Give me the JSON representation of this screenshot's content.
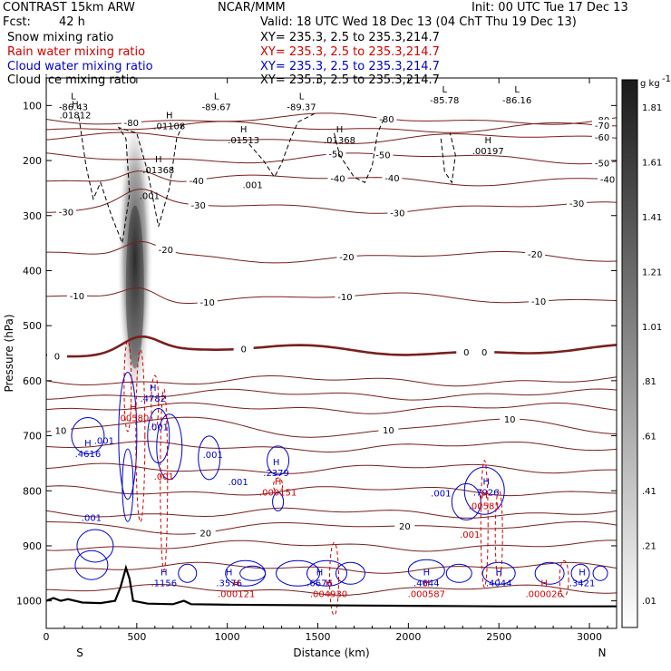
{
  "header": {
    "model": "CONTRAST 15km ARW",
    "center": "NCAR/MMM",
    "init": "Init: 00 UTC Tue 17 Dec 13",
    "fcst_label": "Fcst:",
    "fcst_value": "42 h",
    "valid": "Valid: 18 UTC Wed 18 Dec 13 (04 ChT Thu 19 Dec 13)",
    "fields": [
      {
        "name": "Snow mixing ratio",
        "xy": "XY= 235.3,   2.5 to 235.3,214.7",
        "color": "#000000"
      },
      {
        "name": "Rain water mixing ratio",
        "xy": "XY= 235.3,   2.5 to 235.3,214.7",
        "color": "#d00000"
      },
      {
        "name": "Cloud water mixing ratio",
        "xy": "XY= 235.3,   2.5 to 235.3,214.7",
        "color": "#0000cc"
      },
      {
        "name": "Cloud ice mixing ratio",
        "xy": "XY= 235.3,   2.5 to 235.3,214.7",
        "color": "#000000"
      }
    ]
  },
  "chart_data": {
    "type": "contour",
    "xlabel": "Distance (km)",
    "ylabel": "Pressure (hPa)",
    "xlim": [
      0,
      3150
    ],
    "ylim": [
      1050,
      50
    ],
    "xticks": [
      0,
      500,
      1000,
      1500,
      2000,
      2500,
      3000
    ],
    "yticks": [
      100,
      200,
      300,
      400,
      500,
      600,
      700,
      800,
      900,
      1000
    ],
    "x_end_labels": {
      "left": "S",
      "right": "N"
    },
    "colorbar": {
      "unit": "g kg",
      "unit_exp": "-1",
      "levels": [
        ".01",
        ".21",
        ".41",
        ".61",
        ".81",
        "1.01",
        "1.21",
        "1.41",
        "1.61",
        "1.81"
      ]
    },
    "temperature_contours": [
      {
        "level": -80,
        "base_p": 125,
        "labels": [
          {
            "x": 470,
            "text": "-80"
          },
          {
            "x": 1880,
            "text": "-80"
          },
          {
            "x": 3070,
            "text": "-80"
          }
        ]
      },
      {
        "level": -70,
        "base_p": 140,
        "labels": [
          {
            "x": 3070,
            "text": "-70"
          }
        ]
      },
      {
        "level": -60,
        "base_p": 160,
        "labels": [
          {
            "x": 3070,
            "text": "-60"
          }
        ]
      },
      {
        "level": -50,
        "base_p": 195,
        "labels": [
          {
            "x": 1600,
            "text": "-50"
          },
          {
            "x": 1860,
            "text": "-50"
          },
          {
            "x": 3070,
            "text": "-50"
          }
        ]
      },
      {
        "level": -40,
        "base_p": 235,
        "labels": [
          {
            "x": 830,
            "text": "-40"
          },
          {
            "x": 1610,
            "text": "-40"
          },
          {
            "x": 1910,
            "text": "-40"
          },
          {
            "x": 3100,
            "text": "-40"
          }
        ]
      },
      {
        "level": -30,
        "base_p": 285,
        "labels": [
          {
            "x": 110,
            "text": "-30"
          },
          {
            "x": 840,
            "text": "-30"
          },
          {
            "x": 1940,
            "text": "-30"
          },
          {
            "x": 2930,
            "text": "-30"
          }
        ]
      },
      {
        "level": -20,
        "base_p": 375,
        "labels": [
          {
            "x": 660,
            "text": "-20"
          },
          {
            "x": 1660,
            "text": "-20"
          },
          {
            "x": 2700,
            "text": "-20"
          }
        ]
      },
      {
        "level": -10,
        "base_p": 450,
        "labels": [
          {
            "x": 170,
            "text": "-10"
          },
          {
            "x": 890,
            "text": "-10"
          },
          {
            "x": 1650,
            "text": "-10"
          },
          {
            "x": 2720,
            "text": "-10"
          }
        ]
      },
      {
        "level": 0,
        "base_p": 545,
        "labels": [
          {
            "x": 60,
            "text": "0"
          },
          {
            "x": 1090,
            "text": "0"
          },
          {
            "x": 2320,
            "text": "0"
          },
          {
            "x": 2420,
            "text": "0"
          }
        ]
      },
      {
        "level": 10,
        "base_p": 685,
        "labels": [
          {
            "x": 80,
            "text": "10"
          },
          {
            "x": 1890,
            "text": "10"
          },
          {
            "x": 2560,
            "text": "10"
          }
        ]
      },
      {
        "level": 20,
        "base_p": 865,
        "labels": [
          {
            "x": 880,
            "text": "20"
          },
          {
            "x": 1980,
            "text": "20"
          }
        ]
      }
    ],
    "extrema": [
      {
        "kind": "L",
        "x": 150,
        "p": 100,
        "value": "-86.43",
        "color": "#000000"
      },
      {
        "kind": "H",
        "x": 160,
        "p": 115,
        "value": ".01812",
        "color": "#000000"
      },
      {
        "kind": "H",
        "x": 680,
        "p": 135,
        "value": ".01108",
        "color": "#000000"
      },
      {
        "kind": "L",
        "x": 940,
        "p": 100,
        "value": "-89.67",
        "color": "#000000"
      },
      {
        "kind": "L",
        "x": 1410,
        "p": 100,
        "value": "-89.37",
        "color": "#000000"
      },
      {
        "kind": "H",
        "x": 1090,
        "p": 160,
        "value": ".01513",
        "color": "#000000"
      },
      {
        "kind": "H",
        "x": 1620,
        "p": 160,
        "value": ".01368",
        "color": "#000000"
      },
      {
        "kind": "L",
        "x": 2200,
        "p": 88,
        "value": "-85.78",
        "color": "#000000"
      },
      {
        "kind": "L",
        "x": 2600,
        "p": 88,
        "value": "-86.16",
        "color": "#000000"
      },
      {
        "kind": "H",
        "x": 2440,
        "p": 180,
        "value": ".00197",
        "color": "#000000"
      },
      {
        "kind": "H",
        "x": 620,
        "p": 215,
        "value": ".01368",
        "color": "#000000"
      },
      {
        "kind": "H",
        "x": 590,
        "p": 630,
        "value": ".4782",
        "color": "#0000cc"
      },
      {
        "kind": "H",
        "x": 480,
        "p": 665,
        "value": ".00580",
        "color": "#d00000"
      },
      {
        "kind": "H",
        "x": 230,
        "p": 730,
        "value": ".4616",
        "color": "#0000cc"
      },
      {
        "kind": "H",
        "x": 1270,
        "p": 765,
        "value": ".2379",
        "color": "#0000cc"
      },
      {
        "kind": "H",
        "x": 1280,
        "p": 800,
        "value": ".000151",
        "color": "#d00000"
      },
      {
        "kind": "H",
        "x": 2430,
        "p": 800,
        "value": ".7926",
        "color": "#0000cc"
      },
      {
        "kind": "H",
        "x": 2420,
        "p": 825,
        "value": ".00581",
        "color": "#d00000"
      },
      {
        "kind": "H",
        "x": 650,
        "p": 965,
        "value": ".1156",
        "color": "#0000cc"
      },
      {
        "kind": "H",
        "x": 1010,
        "p": 965,
        "value": ".3576",
        "color": "#0000cc"
      },
      {
        "kind": "H",
        "x": 1050,
        "p": 985,
        "value": ".000121",
        "color": "#d00000"
      },
      {
        "kind": "H",
        "x": 1510,
        "p": 965,
        "value": ".6676",
        "color": "#0000cc"
      },
      {
        "kind": "H",
        "x": 1560,
        "p": 985,
        "value": ".004930",
        "color": "#d00000"
      },
      {
        "kind": "H",
        "x": 2100,
        "p": 965,
        "value": ".4644",
        "color": "#0000cc"
      },
      {
        "kind": "H",
        "x": 2100,
        "p": 985,
        "value": ".000587",
        "color": "#d00000"
      },
      {
        "kind": "H",
        "x": 2500,
        "p": 965,
        "value": ".4044",
        "color": "#0000cc"
      },
      {
        "kind": "H",
        "x": 2750,
        "p": 985,
        "value": ".000026",
        "color": "#d00000"
      },
      {
        "kind": "H",
        "x": 2960,
        "p": 965,
        "value": ".3421",
        "color": "#0000cc"
      }
    ],
    "small_labels": [
      {
        "x": 1140,
        "p": 250,
        "text": ".001",
        "color": "#000000"
      },
      {
        "x": 570,
        "p": 270,
        "text": ".001",
        "color": "#000000"
      },
      {
        "x": 320,
        "p": 715,
        "text": ".001",
        "color": "#0000cc"
      },
      {
        "x": 620,
        "p": 690,
        "text": ".001",
        "color": "#0000cc"
      },
      {
        "x": 920,
        "p": 740,
        "text": ".001",
        "color": "#0000cc"
      },
      {
        "x": 1060,
        "p": 790,
        "text": ".001",
        "color": "#0000cc"
      },
      {
        "x": 250,
        "p": 855,
        "text": ".001",
        "color": "#0000cc"
      },
      {
        "x": 2180,
        "p": 810,
        "text": ".001",
        "color": "#0000cc"
      },
      {
        "x": 2340,
        "p": 885,
        "text": ".001",
        "color": "#d00000"
      },
      {
        "x": 650,
        "p": 780,
        "text": ".001",
        "color": "#d00000"
      }
    ]
  }
}
